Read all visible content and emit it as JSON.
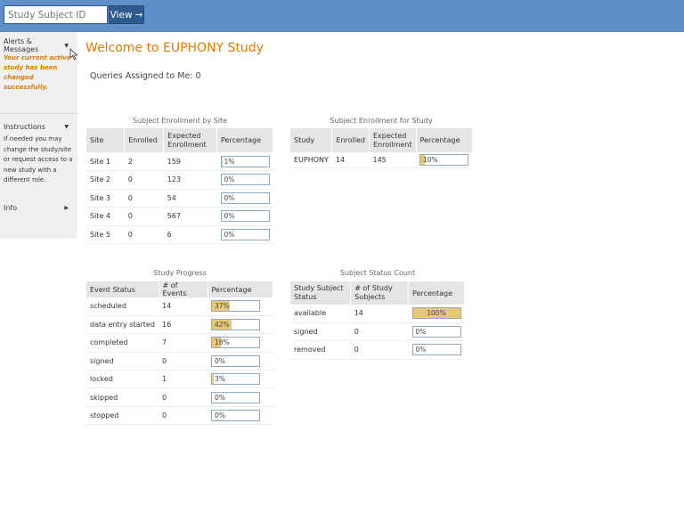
{
  "header": {
    "search_placeholder": "Study Subject ID",
    "view_label": "View",
    "view_arrow": "→"
  },
  "sidebar": {
    "alerts_label": "Alerts & Messages",
    "alert_text": [
      "Your current active",
      "study has been",
      "changed successfully."
    ],
    "instructions_label": "Instructions",
    "instructions_text": [
      "If needed you may",
      "change the study/site",
      "or request access to a",
      "new study with a",
      "different role."
    ],
    "info_label": "Info",
    "caret_down": "▼",
    "caret_right": "▶"
  },
  "main": {
    "welcome": "Welcome to EUPHONY Study",
    "queries": "Queries Assigned to Me: 0"
  },
  "site_table": {
    "title": "Subject Enrollment by Site",
    "headers": [
      "Site",
      "Enrolled",
      "Expected Enrollment",
      "Percentage"
    ],
    "rows": [
      {
        "site": "Site 1",
        "enrolled": "2",
        "expected": "159",
        "pct": "1%",
        "fill": 0.01
      },
      {
        "site": "Site 2",
        "enrolled": "0",
        "expected": "123",
        "pct": "0%",
        "fill": 0
      },
      {
        "site": "Site 3",
        "enrolled": "0",
        "expected": "54",
        "pct": "0%",
        "fill": 0
      },
      {
        "site": "Site 4",
        "enrolled": "0",
        "expected": "567",
        "pct": "0%",
        "fill": 0
      },
      {
        "site": "Site 5",
        "enrolled": "0",
        "expected": "6",
        "pct": "0%",
        "fill": 0
      }
    ]
  },
  "study_table": {
    "title": "Subject Enrollment for Study",
    "headers": [
      "Study",
      "Enrolled",
      "Expected Enrollment",
      "Percentage"
    ],
    "rows": [
      {
        "study": "EUPHONY",
        "enrolled": "14",
        "expected": "145",
        "pct": "10%",
        "fill": 0.1
      }
    ]
  },
  "progress_table": {
    "title": "Study Progress",
    "headers": [
      "Event Status",
      "# of Events",
      "Percentage"
    ],
    "rows": [
      {
        "status": "scheduled",
        "events": "14",
        "pct": "37%",
        "fill": 0.37
      },
      {
        "status": "data entry started",
        "events": "16",
        "pct": "42%",
        "fill": 0.42
      },
      {
        "status": "completed",
        "events": "7",
        "pct": "18%",
        "fill": 0.18
      },
      {
        "status": "signed",
        "events": "0",
        "pct": "0%",
        "fill": 0
      },
      {
        "status": "locked",
        "events": "1",
        "pct": "3%",
        "fill": 0.03
      },
      {
        "status": "skipped",
        "events": "0",
        "pct": "0%",
        "fill": 0
      },
      {
        "status": "stopped",
        "events": "0",
        "pct": "0%",
        "fill": 0
      }
    ]
  },
  "status_table": {
    "title": "Subject Status Count",
    "headers": [
      "Study Subject Status",
      "# of Study Subjects",
      "Percentage"
    ],
    "rows": [
      {
        "status": "available",
        "count": "14",
        "pct": "100%",
        "fill": 1.0
      },
      {
        "status": "signed",
        "count": "0",
        "pct": "0%",
        "fill": 0
      },
      {
        "status": "removed",
        "count": "0",
        "pct": "0%",
        "fill": 0
      }
    ]
  },
  "colors": {
    "topbar": "#5f8fc6",
    "accent_orange": "#e07a00",
    "bar_fill": "#e8c878"
  }
}
